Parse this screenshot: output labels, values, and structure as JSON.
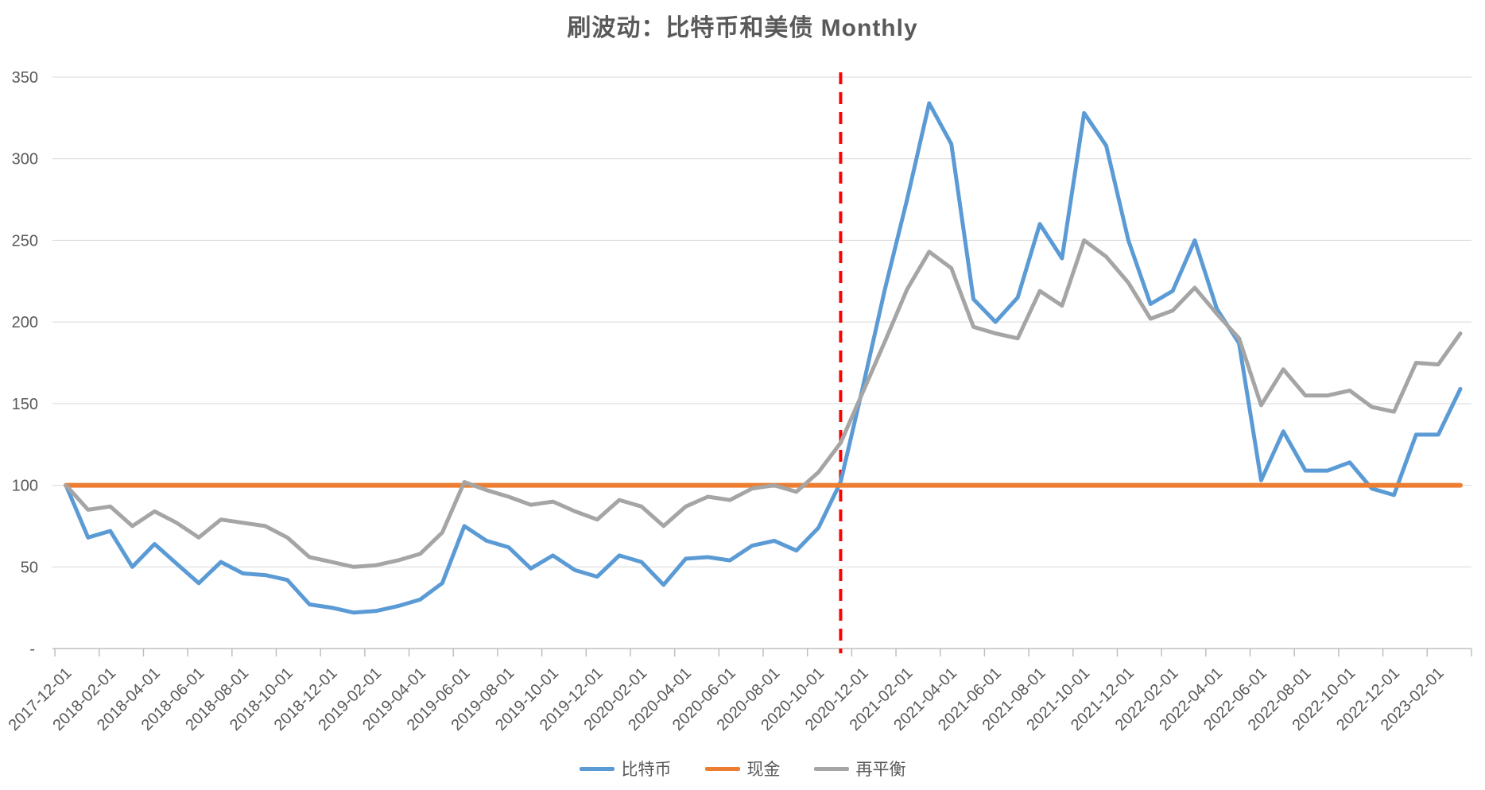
{
  "page": {
    "background": "#FFFFFF"
  },
  "chart_data": {
    "type": "line",
    "title": "刷波动：比特币和美债 Monthly",
    "xlabel": "",
    "ylabel": "",
    "ylim": [
      0,
      350
    ],
    "y_tick_step": 50,
    "y_zero_label": "-",
    "grid": true,
    "legend_position": "bottom",
    "x_label_interval": 2,
    "x": [
      "2017-12-01",
      "2018-01-01",
      "2018-02-01",
      "2018-03-01",
      "2018-04-01",
      "2018-05-01",
      "2018-06-01",
      "2018-07-01",
      "2018-08-01",
      "2018-09-01",
      "2018-10-01",
      "2018-11-01",
      "2018-12-01",
      "2019-01-01",
      "2019-02-01",
      "2019-03-01",
      "2019-04-01",
      "2019-05-01",
      "2019-06-01",
      "2019-07-01",
      "2019-08-01",
      "2019-09-01",
      "2019-10-01",
      "2019-11-01",
      "2019-12-01",
      "2020-01-01",
      "2020-02-01",
      "2020-03-01",
      "2020-04-01",
      "2020-05-01",
      "2020-06-01",
      "2020-07-01",
      "2020-08-01",
      "2020-09-01",
      "2020-10-01",
      "2020-11-01",
      "2020-12-01",
      "2021-01-01",
      "2021-02-01",
      "2021-03-01",
      "2021-04-01",
      "2021-05-01",
      "2021-06-01",
      "2021-07-01",
      "2021-08-01",
      "2021-09-01",
      "2021-10-01",
      "2021-11-01",
      "2021-12-01",
      "2022-01-01",
      "2022-02-01",
      "2022-03-01",
      "2022-04-01",
      "2022-05-01",
      "2022-06-01",
      "2022-07-01",
      "2022-08-01",
      "2022-09-01",
      "2022-10-01",
      "2022-11-01",
      "2022-12-01",
      "2023-01-01",
      "2023-02-01",
      "2023-03-01"
    ],
    "series": [
      {
        "name": "比特币",
        "color": "#5B9BD5",
        "width": 5,
        "values": [
          100,
          68,
          72,
          50,
          64,
          52,
          40,
          53,
          46,
          45,
          42,
          27,
          25,
          22,
          23,
          26,
          30,
          40,
          75,
          66,
          62,
          49,
          57,
          48,
          44,
          57,
          53,
          39,
          55,
          56,
          54,
          63,
          66,
          60,
          74,
          102,
          160,
          220,
          275,
          334,
          309,
          214,
          200,
          215,
          260,
          239,
          328,
          308,
          250,
          211,
          219,
          250,
          208,
          187,
          103,
          133,
          109,
          109,
          114,
          98,
          94,
          131,
          131,
          159
        ]
      },
      {
        "name": "现金",
        "color": "#ED7D31",
        "width": 6,
        "values": [
          100,
          100,
          100,
          100,
          100,
          100,
          100,
          100,
          100,
          100,
          100,
          100,
          100,
          100,
          100,
          100,
          100,
          100,
          100,
          100,
          100,
          100,
          100,
          100,
          100,
          100,
          100,
          100,
          100,
          100,
          100,
          100,
          100,
          100,
          100,
          100,
          100,
          100,
          100,
          100,
          100,
          100,
          100,
          100,
          100,
          100,
          100,
          100,
          100,
          100,
          100,
          100,
          100,
          100,
          100,
          100,
          100,
          100,
          100,
          100,
          100,
          100,
          100,
          100
        ]
      },
      {
        "name": "再平衡",
        "color": "#A5A5A5",
        "width": 5,
        "values": [
          100,
          85,
          87,
          75,
          84,
          77,
          68,
          79,
          77,
          75,
          68,
          56,
          53,
          50,
          51,
          54,
          58,
          71,
          102,
          97,
          93,
          88,
          90,
          84,
          79,
          91,
          87,
          75,
          87,
          93,
          91,
          98,
          100,
          96,
          108,
          126,
          157,
          188,
          220,
          243,
          233,
          197,
          193,
          190,
          219,
          210,
          250,
          240,
          224,
          202,
          207,
          221,
          205,
          190,
          149,
          171,
          155,
          155,
          158,
          148,
          145,
          175,
          174,
          193
        ]
      }
    ],
    "annotations": [
      {
        "type": "vline",
        "x": "2020-11-01",
        "color": "#FF0000",
        "style": "dashed"
      }
    ]
  },
  "colors": {
    "grid": "#D9D9D9",
    "axis": "#BFBFBF",
    "tick": "#BFBFBF",
    "text": "#595959",
    "title": "#595959",
    "background": "#FFFFFF"
  }
}
